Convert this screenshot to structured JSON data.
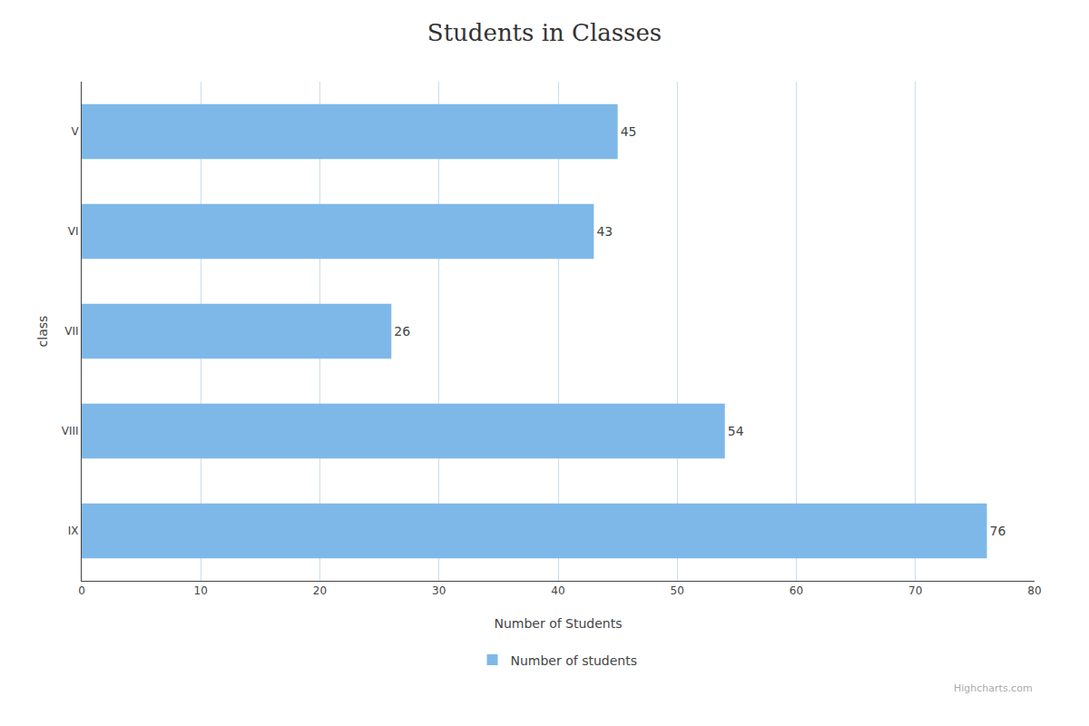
{
  "chart_data": {
    "type": "bar",
    "orientation": "horizontal",
    "title": "Students in Classes",
    "categories": [
      "V",
      "VI",
      "VII",
      "VIII",
      "IX"
    ],
    "series": [
      {
        "name": "Number of students",
        "color": "#7eb8e8",
        "values": [
          45,
          43,
          26,
          54,
          76
        ]
      }
    ],
    "xlabel": "Number of Students",
    "ylabel": "class",
    "xlim": [
      0,
      80
    ],
    "xticks": [
      0,
      10,
      20,
      30,
      40,
      50,
      60,
      70,
      80
    ],
    "grid": "x",
    "legend": "bottom",
    "data_labels": true,
    "annotations": [
      "Highcharts.com"
    ]
  }
}
